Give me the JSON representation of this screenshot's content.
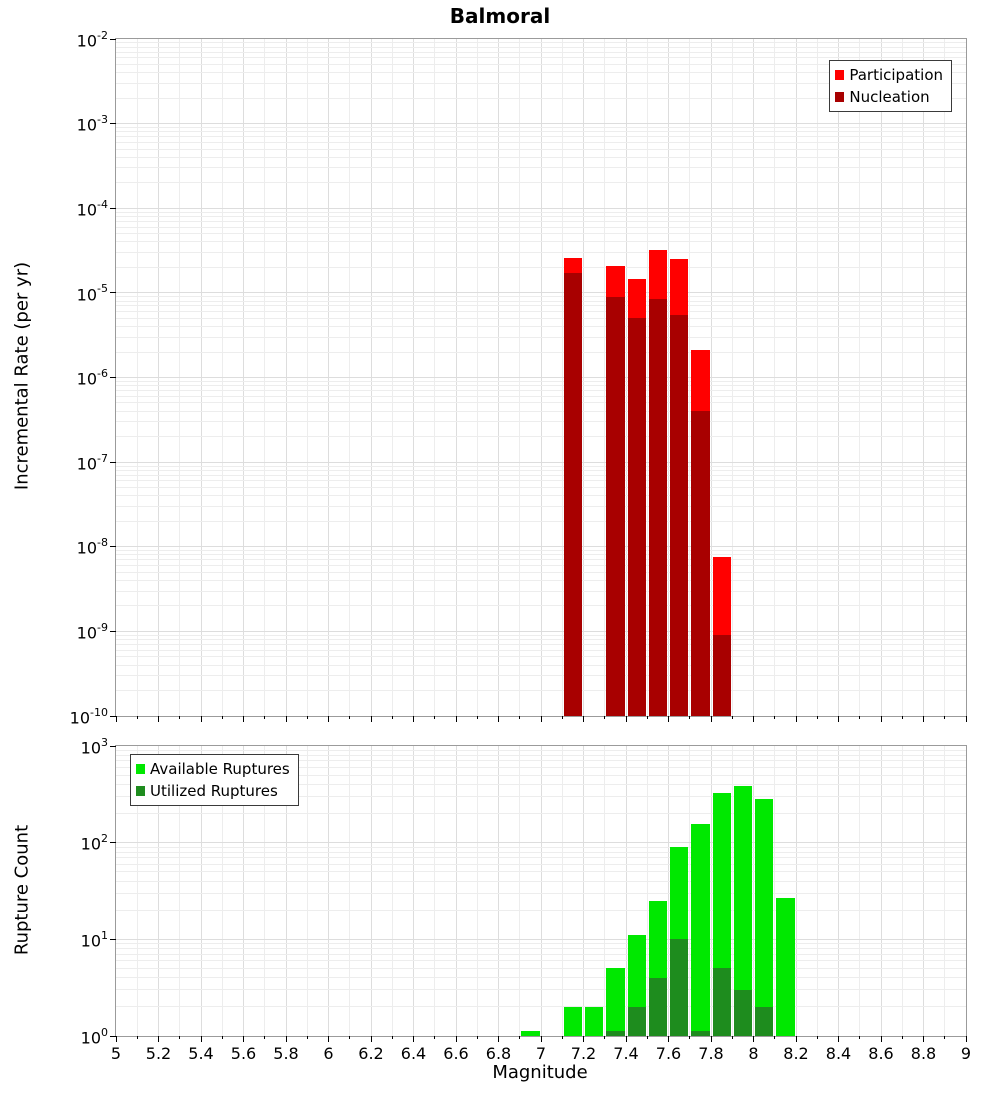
{
  "title": "Balmoral",
  "chart_data": [
    {
      "type": "bar",
      "panel": "incremental-rate",
      "title": "Balmoral",
      "xlabel": "Magnitude",
      "ylabel": "Incremental Rate (per yr)",
      "xlim": [
        5,
        9
      ],
      "yscale": "log",
      "ylim": [
        1e-10,
        0.01
      ],
      "grid": true,
      "bin_width": 0.1,
      "bins": [
        7.1,
        7.3,
        7.4,
        7.5,
        7.6,
        7.7,
        7.8
      ],
      "series": [
        {
          "name": "Participation",
          "color": "#ff0000",
          "values": [
            2.6e-05,
            2.1e-05,
            1.45e-05,
            3.2e-05,
            2.5e-05,
            2.1e-06,
            7.5e-09
          ]
        },
        {
          "name": "Nucleation",
          "color": "#a80000",
          "values": [
            1.7e-05,
            9e-06,
            5e-06,
            8.5e-06,
            5.5e-06,
            4e-07,
            9e-10
          ]
        }
      ],
      "legend_position": "top-right",
      "x_tick_labels": [
        "5",
        "5.2",
        "5.4",
        "5.6",
        "5.8",
        "6",
        "6.2",
        "6.4",
        "6.6",
        "6.8",
        "7",
        "7.2",
        "7.4",
        "7.6",
        "7.8",
        "8",
        "8.2",
        "8.4",
        "8.6",
        "8.8",
        "9"
      ],
      "y_tick_exponents": [
        -2,
        -3,
        -4,
        -5,
        -6,
        -7,
        -8,
        -9,
        -10
      ],
      "show_x_tick_labels": false
    },
    {
      "type": "bar",
      "panel": "rupture-count",
      "title": "",
      "xlabel": "Magnitude",
      "ylabel": "Rupture Count",
      "xlim": [
        5,
        9
      ],
      "yscale": "log",
      "ylim": [
        1,
        1000
      ],
      "grid": true,
      "bin_width": 0.1,
      "bins": [
        6.9,
        7.1,
        7.2,
        7.3,
        7.4,
        7.5,
        7.6,
        7.7,
        7.8,
        7.9,
        8.0,
        8.1
      ],
      "series": [
        {
          "name": "Available Ruptures",
          "color": "#00e800",
          "values": [
            1,
            2,
            2,
            5,
            11,
            25,
            90,
            155,
            330,
            390,
            280,
            27
          ]
        },
        {
          "name": "Utilized Ruptures",
          "color": "#1e8c1e",
          "values": [
            0,
            0,
            0,
            1,
            2,
            4,
            10,
            1,
            5,
            3,
            2,
            0
          ]
        }
      ],
      "legend_position": "top-left",
      "x_tick_labels": [
        "5",
        "5.2",
        "5.4",
        "5.6",
        "5.8",
        "6",
        "6.2",
        "6.4",
        "6.6",
        "6.8",
        "7",
        "7.2",
        "7.4",
        "7.6",
        "7.8",
        "8",
        "8.2",
        "8.4",
        "8.6",
        "8.8",
        "9"
      ],
      "y_tick_exponents": [
        0,
        1,
        2,
        3
      ],
      "show_x_tick_labels": true
    }
  ]
}
